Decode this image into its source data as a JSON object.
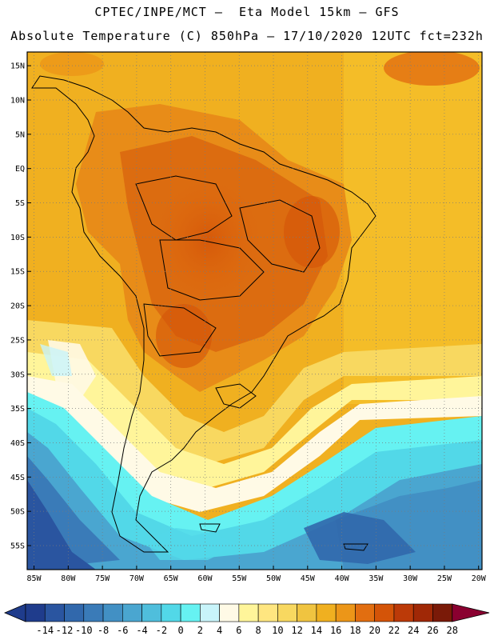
{
  "header": {
    "title_line1": "CPTEC/INPE/MCT —  Eta Model 15km — GFS",
    "title_line2": "Absolute Temperature (C) 850hPa — 17/10/2020 12UTC fct=232h"
  },
  "map": {
    "lat_labels": [
      "15N",
      "10N",
      "5N",
      "EQ",
      "5S",
      "10S",
      "15S",
      "20S",
      "25S",
      "30S",
      "35S",
      "40S",
      "45S",
      "50S",
      "55S"
    ],
    "lat_values": [
      15,
      10,
      5,
      0,
      -5,
      -10,
      -15,
      -20,
      -25,
      -30,
      -35,
      -40,
      -45,
      -50,
      -55
    ],
    "lon_labels": [
      "85W",
      "80W",
      "75W",
      "70W",
      "65W",
      "60W",
      "55W",
      "50W",
      "45W",
      "40W",
      "35W",
      "30W",
      "25W",
      "20W"
    ],
    "lon_values": [
      -85,
      -80,
      -75,
      -70,
      -65,
      -60,
      -55,
      -50,
      -45,
      -40,
      -35,
      -30,
      -25,
      -20
    ],
    "lat_range": [
      -58.5,
      17
    ],
    "lon_range": [
      -86,
      -19.5
    ]
  },
  "colorbar": {
    "labels": [
      "-14",
      "-12",
      "-10",
      "-8",
      "-6",
      "-4",
      "-2",
      "0",
      "2",
      "4",
      "6",
      "8",
      "10",
      "12",
      "14",
      "16",
      "18",
      "20",
      "22",
      "24",
      "26",
      "28"
    ],
    "colors": [
      "#1f3c8c",
      "#2a55a0",
      "#3168ac",
      "#3a7bb8",
      "#4290c4",
      "#4aa6d0",
      "#4fbedc",
      "#52d8e8",
      "#66f2f2",
      "#c8f4fa",
      "#fffae6",
      "#fff59a",
      "#ffe680",
      "#f8d860",
      "#f0c440",
      "#f0b020",
      "#ec9618",
      "#e26e10",
      "#d45408",
      "#bc3a08",
      "#a02806",
      "#7a1a08",
      "#8a0030"
    ]
  }
}
